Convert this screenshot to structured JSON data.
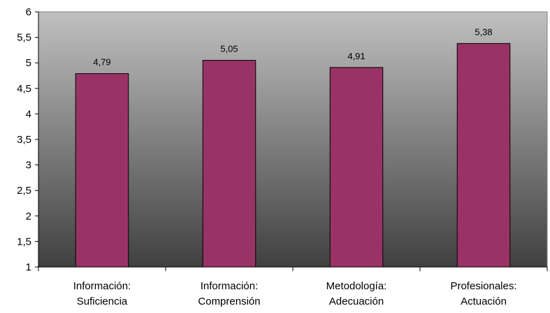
{
  "chart_data": {
    "type": "bar",
    "title": "",
    "xlabel": "",
    "ylabel": "",
    "categories": [
      [
        "Información:",
        "Suficiencia"
      ],
      [
        "Información:",
        "Comprensión"
      ],
      [
        "Metodología:",
        "Adecuación"
      ],
      [
        "Profesionales:",
        "Actuación"
      ]
    ],
    "values": [
      4.79,
      5.05,
      4.91,
      5.38
    ],
    "value_labels": [
      "4,79",
      "5,05",
      "4,91",
      "5,38"
    ],
    "ylim": [
      1,
      6
    ],
    "yticks": [
      1,
      1.5,
      2,
      2.5,
      3,
      3.5,
      4,
      4.5,
      5,
      5.5,
      6
    ],
    "ytick_labels": [
      "1",
      "1,5",
      "2",
      "2,5",
      "3",
      "3,5",
      "4",
      "4,5",
      "5",
      "5,5",
      "6"
    ],
    "grid": false,
    "legend": "none",
    "colors": {
      "bar": "#993366",
      "bar_stroke": "#000000",
      "plot_bg_top": "#c0c0c0",
      "plot_bg_bottom": "#404040"
    }
  }
}
